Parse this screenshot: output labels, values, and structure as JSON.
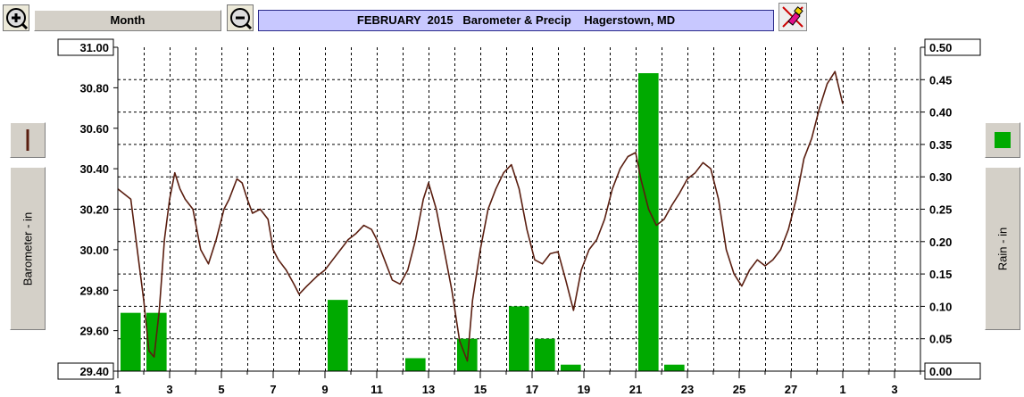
{
  "toolbar": {
    "zoom_in_icon": "zoom-in-icon",
    "zoom_out_icon": "zoom-out-icon",
    "period_label": "Month",
    "title": "FEBRUARY  2015   Barometer & Precip    Hagerstown, MD",
    "tool_icon": "paint-tool-icon"
  },
  "left_panel": {
    "series_label": "Barometer - in",
    "legend_color": "#5a1e10"
  },
  "right_panel": {
    "series_label": "Rain - in",
    "legend_color": "#00aa00"
  },
  "chart_data": {
    "type": "bar+line",
    "title": "FEBRUARY  2015   Barometer & Precip    Hagerstown, MD",
    "x_tick_labels": [
      "1",
      "3",
      "5",
      "7",
      "9",
      "11",
      "13",
      "15",
      "17",
      "19",
      "21",
      "23",
      "25",
      "27",
      "1",
      "3"
    ],
    "x_tick_days": [
      1,
      3,
      5,
      7,
      9,
      11,
      13,
      15,
      17,
      19,
      21,
      23,
      25,
      27,
      29,
      31
    ],
    "xlim": [
      1,
      32
    ],
    "grid": true,
    "left_axis": {
      "label": "Barometer - in",
      "ylim": [
        29.4,
        31.0
      ],
      "ticks": [
        "31.00",
        "30.80",
        "30.60",
        "30.40",
        "30.20",
        "30.00",
        "29.80",
        "29.60",
        "29.40"
      ]
    },
    "right_axis": {
      "label": "Rain - in",
      "ylim": [
        0,
        0.5
      ],
      "ticks": [
        "0.50",
        "0.45",
        "0.40",
        "0.35",
        "0.30",
        "0.25",
        "0.20",
        "0.15",
        "0.10",
        "0.05",
        "0.00"
      ]
    },
    "series": [
      {
        "name": "Barometer - in",
        "kind": "line",
        "axis": "left",
        "color": "#5a1e10",
        "x": [
          1.0,
          1.5,
          1.7,
          2.0,
          2.2,
          2.4,
          2.6,
          2.8,
          3.0,
          3.2,
          3.4,
          3.6,
          3.9,
          4.2,
          4.5,
          4.8,
          5.1,
          5.3,
          5.6,
          5.8,
          6.0,
          6.2,
          6.5,
          6.8,
          7.0,
          7.2,
          7.5,
          7.8,
          8.0,
          8.3,
          8.7,
          9.0,
          9.3,
          9.6,
          9.9,
          10.2,
          10.5,
          10.8,
          11.0,
          11.3,
          11.6,
          11.9,
          12.2,
          12.5,
          12.8,
          13.0,
          13.3,
          13.6,
          13.9,
          14.2,
          14.5,
          14.7,
          15.0,
          15.3,
          15.6,
          15.9,
          16.2,
          16.5,
          16.8,
          17.1,
          17.4,
          17.7,
          18.0,
          18.3,
          18.6,
          18.9,
          19.2,
          19.5,
          19.8,
          20.1,
          20.4,
          20.7,
          21.0,
          21.2,
          21.5,
          21.8,
          22.1,
          22.4,
          22.7,
          23.0,
          23.3,
          23.6,
          23.9,
          24.2,
          24.5,
          24.8,
          25.1,
          25.4,
          25.7,
          26.0,
          26.3,
          26.6,
          26.9,
          27.2,
          27.5,
          27.8,
          28.1,
          28.4,
          28.7,
          29.0
        ],
        "y": [
          30.3,
          30.25,
          30.05,
          29.75,
          29.5,
          29.47,
          29.7,
          30.05,
          30.25,
          30.38,
          30.3,
          30.25,
          30.2,
          30.0,
          29.93,
          30.05,
          30.2,
          30.25,
          30.35,
          30.33,
          30.25,
          30.18,
          30.2,
          30.15,
          30.0,
          29.95,
          29.9,
          29.83,
          29.78,
          29.82,
          29.87,
          29.9,
          29.95,
          30.0,
          30.05,
          30.08,
          30.12,
          30.1,
          30.05,
          29.95,
          29.85,
          29.83,
          29.9,
          30.05,
          30.25,
          30.33,
          30.2,
          30.0,
          29.8,
          29.55,
          29.45,
          29.75,
          30.0,
          30.2,
          30.3,
          30.38,
          30.42,
          30.3,
          30.1,
          29.95,
          29.93,
          29.98,
          29.99,
          29.85,
          29.7,
          29.9,
          30.0,
          30.05,
          30.15,
          30.3,
          30.4,
          30.46,
          30.48,
          30.35,
          30.2,
          30.12,
          30.15,
          30.22,
          30.28,
          30.35,
          30.38,
          30.43,
          30.4,
          30.25,
          30.0,
          29.88,
          29.82,
          29.9,
          29.95,
          29.92,
          29.95,
          30.0,
          30.1,
          30.25,
          30.45,
          30.55,
          30.7,
          30.82,
          30.88,
          30.72
        ]
      },
      {
        "name": "Rain - in",
        "kind": "bar",
        "axis": "right",
        "color": "#00aa00",
        "x": [
          1,
          2,
          9,
          12,
          14,
          16,
          17,
          18,
          21,
          22
        ],
        "values": [
          0.09,
          0.09,
          0.11,
          0.02,
          0.05,
          0.1,
          0.05,
          0.01,
          0.46,
          0.01
        ]
      }
    ]
  }
}
